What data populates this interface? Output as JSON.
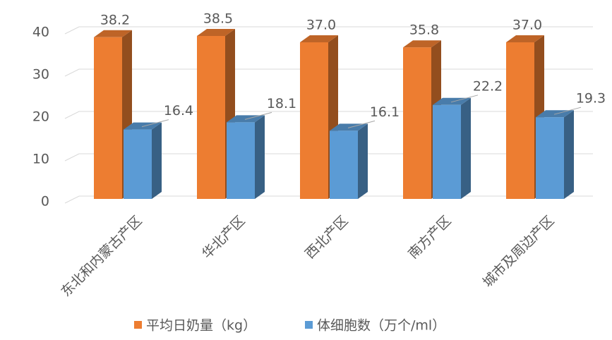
{
  "chart_data": {
    "type": "bar3d",
    "categories": [
      "东北和内蒙古产区",
      "华北产区",
      "西北产区",
      "南方产区",
      "城市及周边产区"
    ],
    "series": [
      {
        "name": "平均日奶量（kg）",
        "color": "#ED7D31",
        "values": [
          38.2,
          38.5,
          37.0,
          35.8,
          37.0
        ],
        "value_labels": [
          "38.2",
          "38.5",
          "37.0",
          "35.8",
          "37.0"
        ]
      },
      {
        "name": "体细胞数（万个/ml）",
        "color": "#5B9BD5",
        "values": [
          16.4,
          18.1,
          16.1,
          22.2,
          19.3
        ],
        "value_labels": [
          "16.4",
          "18.1",
          "16.1",
          "22.2",
          "19.3"
        ]
      }
    ],
    "ylim": [
      0,
      40
    ],
    "yticks": [
      0,
      10,
      20,
      30,
      40
    ],
    "grid": true,
    "legend": "bottom"
  }
}
